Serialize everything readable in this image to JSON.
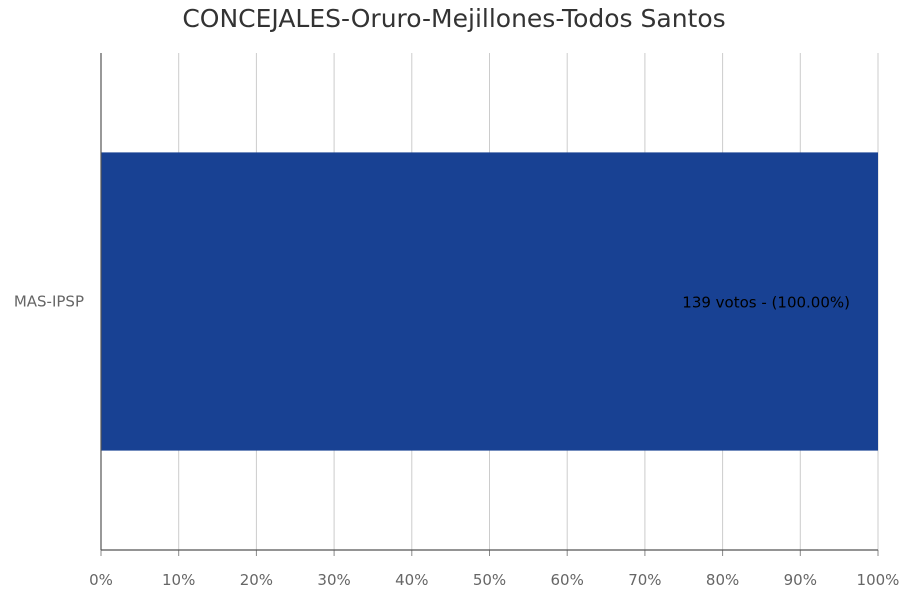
{
  "chart_data": {
    "type": "bar",
    "orientation": "horizontal",
    "title": "CONCEJALES-Oruro-Mejillones-Todos Santos",
    "categories": [
      "MAS-IPSP"
    ],
    "series": [
      {
        "values": [
          100
        ],
        "votes": [
          139
        ],
        "labels": [
          "139 votos - (100.00%)"
        ],
        "color": "#184193"
      }
    ],
    "xlabel": "",
    "ylabel": "",
    "xlim": [
      0,
      100
    ],
    "x_ticks": [
      "0%",
      "10%",
      "20%",
      "30%",
      "40%",
      "50%",
      "60%",
      "70%",
      "80%",
      "90%",
      "100%"
    ],
    "grid": true,
    "legend": "none"
  }
}
